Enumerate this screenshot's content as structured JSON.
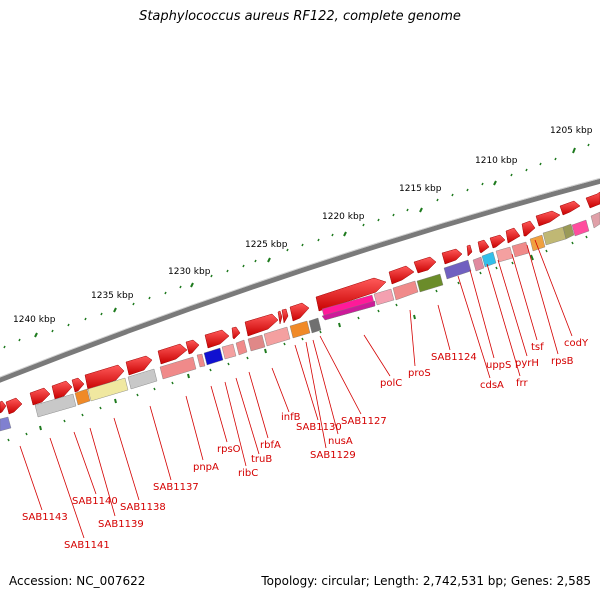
{
  "title": "Staphylococcus aureus RF122, complete genome",
  "accession": "Accession: NC_007622",
  "summary": "Topology: circular; Length: 2,742,531 bp; Genes: 2,585",
  "colors": {
    "backbone": "#7a7a7a",
    "ticks": "#1e7a1e",
    "forward": "#ee0000",
    "label": "#d40000"
  },
  "kbp_labels": [
    "1205 kbp",
    "1210 kbp",
    "1215 kbp",
    "1220 kbp",
    "1225 kbp",
    "1230 kbp",
    "1235 kbp",
    "1240 kbp"
  ],
  "gene_labels": [
    "codY",
    "rpsB",
    "tsf",
    "pyrH",
    "frr",
    "uppS",
    "cdsA",
    "SAB1124",
    "proS",
    "polC",
    "SAB1127",
    "nusA",
    "SAB1129",
    "SAB1130",
    "infB",
    "rbfA",
    "truB",
    "ribC",
    "rpsO",
    "pnpA",
    "SAB1137",
    "SAB1138",
    "SAB1139",
    "SAB1140",
    "SAB1141",
    "SAB1143"
  ]
}
